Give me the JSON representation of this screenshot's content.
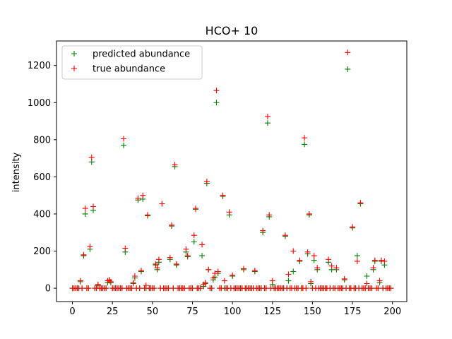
{
  "chart_data": {
    "type": "scatter",
    "title": "HCO+ 10",
    "xlabel": "",
    "ylabel": "intensity",
    "xlim": [
      -9.95,
      208.95
    ],
    "ylim": [
      -72,
      1332
    ],
    "xticks": [
      0,
      25,
      50,
      75,
      100,
      125,
      150,
      175,
      200
    ],
    "yticks": [
      0,
      200,
      400,
      600,
      800,
      1000,
      1200
    ],
    "legend_position": "top-left",
    "grid": false,
    "series": [
      {
        "name": "predicted abundance",
        "color": "#008000",
        "marker": "+",
        "x": [
          0,
          1,
          2,
          3,
          4,
          5,
          6,
          7,
          8,
          9,
          10,
          11,
          12,
          13,
          14,
          15,
          16,
          17,
          18,
          19,
          20,
          21,
          22,
          23,
          24,
          25,
          26,
          27,
          28,
          29,
          30,
          31,
          32,
          33,
          34,
          35,
          36,
          37,
          38,
          39,
          40,
          41,
          42,
          43,
          44,
          45,
          46,
          47,
          48,
          49,
          50,
          51,
          52,
          53,
          54,
          55,
          56,
          57,
          58,
          59,
          60,
          61,
          62,
          63,
          64,
          65,
          66,
          67,
          68,
          69,
          70,
          71,
          72,
          73,
          74,
          75,
          76,
          77,
          78,
          79,
          80,
          81,
          82,
          83,
          84,
          85,
          86,
          87,
          88,
          89,
          90,
          91,
          92,
          93,
          94,
          95,
          96,
          97,
          98,
          99,
          100,
          101,
          102,
          103,
          104,
          105,
          106,
          107,
          108,
          109,
          110,
          111,
          112,
          113,
          114,
          115,
          116,
          117,
          118,
          119,
          120,
          121,
          122,
          123,
          124,
          125,
          126,
          127,
          128,
          129,
          130,
          131,
          132,
          133,
          134,
          135,
          136,
          137,
          138,
          139,
          140,
          141,
          142,
          143,
          144,
          145,
          146,
          147,
          148,
          149,
          150,
          151,
          152,
          153,
          154,
          155,
          156,
          157,
          158,
          159,
          160,
          161,
          162,
          163,
          164,
          165,
          166,
          167,
          168,
          169,
          170,
          171,
          172,
          173,
          174,
          175,
          176,
          177,
          178,
          179,
          180,
          181,
          182,
          183,
          184,
          185,
          186,
          187,
          188,
          189,
          190,
          191,
          192,
          193,
          194,
          195,
          196,
          197,
          198,
          199
        ],
        "y": [
          0,
          0,
          0,
          0,
          0,
          35,
          0,
          175,
          400,
          0,
          0,
          210,
          680,
          420,
          0,
          0,
          15,
          0,
          0,
          0,
          0,
          0,
          30,
          40,
          30,
          0,
          0,
          0,
          0,
          0,
          0,
          0,
          770,
          195,
          0,
          0,
          0,
          0,
          25,
          55,
          0,
          475,
          0,
          90,
          480,
          0,
          0,
          390,
          0,
          0,
          0,
          0,
          125,
          100,
          140,
          0,
          455,
          0,
          0,
          0,
          0,
          155,
          335,
          0,
          655,
          125,
          0,
          0,
          0,
          0,
          0,
          195,
          170,
          0,
          0,
          0,
          250,
          425,
          0,
          0,
          0,
          175,
          10,
          25,
          565,
          100,
          0,
          0,
          45,
          60,
          1000,
          80,
          0,
          0,
          495,
          0,
          0,
          0,
          395,
          0,
          65,
          0,
          0,
          0,
          0,
          0,
          0,
          100,
          0,
          0,
          0,
          0,
          0,
          0,
          90,
          0,
          0,
          0,
          0,
          300,
          0,
          0,
          890,
          385,
          0,
          20,
          0,
          0,
          0,
          0,
          0,
          0,
          0,
          280,
          0,
          40,
          0,
          0,
          90,
          0,
          0,
          0,
          145,
          0,
          0,
          775,
          0,
          185,
          395,
          25,
          0,
          150,
          0,
          100,
          0,
          0,
          0,
          0,
          0,
          0,
          140,
          0,
          100,
          0,
          0,
          100,
          0,
          0,
          0,
          0,
          45,
          0,
          1180,
          0,
          0,
          325,
          0,
          0,
          175,
          0,
          455,
          0,
          0,
          0,
          65,
          0,
          0,
          0,
          100,
          145,
          0,
          0,
          30,
          145,
          0,
          125,
          0,
          0,
          0,
          0
        ],
        "note": "approximate"
      },
      {
        "name": "true abundance",
        "color": "#ff0000",
        "marker": "+",
        "x": [
          0,
          1,
          2,
          3,
          4,
          5,
          6,
          7,
          8,
          9,
          10,
          11,
          12,
          13,
          14,
          15,
          16,
          17,
          18,
          19,
          20,
          21,
          22,
          23,
          24,
          25,
          26,
          27,
          28,
          29,
          30,
          31,
          32,
          33,
          34,
          35,
          36,
          37,
          38,
          39,
          40,
          41,
          42,
          43,
          44,
          45,
          46,
          47,
          48,
          49,
          50,
          51,
          52,
          53,
          54,
          55,
          56,
          57,
          58,
          59,
          60,
          61,
          62,
          63,
          64,
          65,
          66,
          67,
          68,
          69,
          70,
          71,
          72,
          73,
          74,
          75,
          76,
          77,
          78,
          79,
          80,
          81,
          82,
          83,
          84,
          85,
          86,
          87,
          88,
          89,
          90,
          91,
          92,
          93,
          94,
          95,
          96,
          97,
          98,
          99,
          100,
          101,
          102,
          103,
          104,
          105,
          106,
          107,
          108,
          109,
          110,
          111,
          112,
          113,
          114,
          115,
          116,
          117,
          118,
          119,
          120,
          121,
          122,
          123,
          124,
          125,
          126,
          127,
          128,
          129,
          130,
          131,
          132,
          133,
          134,
          135,
          136,
          137,
          138,
          139,
          140,
          141,
          142,
          143,
          144,
          145,
          146,
          147,
          148,
          149,
          150,
          151,
          152,
          153,
          154,
          155,
          156,
          157,
          158,
          159,
          160,
          161,
          162,
          163,
          164,
          165,
          166,
          167,
          168,
          169,
          170,
          171,
          172,
          173,
          174,
          175,
          176,
          177,
          178,
          179,
          180,
          181,
          182,
          183,
          184,
          185,
          186,
          187,
          188,
          189,
          190,
          191,
          192,
          193,
          194,
          195,
          196,
          197,
          198,
          199
        ],
        "y": [
          0,
          0,
          0,
          0,
          0,
          40,
          0,
          180,
          430,
          0,
          0,
          225,
          705,
          440,
          0,
          0,
          20,
          0,
          0,
          0,
          0,
          0,
          40,
          45,
          35,
          0,
          0,
          0,
          0,
          0,
          0,
          0,
          805,
          215,
          0,
          0,
          0,
          0,
          30,
          65,
          0,
          485,
          0,
          95,
          500,
          0,
          15,
          395,
          0,
          0,
          0,
          0,
          130,
          110,
          155,
          0,
          455,
          0,
          0,
          0,
          0,
          165,
          340,
          0,
          665,
          130,
          0,
          0,
          0,
          0,
          0,
          210,
          175,
          0,
          0,
          0,
          285,
          430,
          0,
          0,
          0,
          235,
          20,
          30,
          575,
          100,
          0,
          0,
          55,
          80,
          1065,
          90,
          0,
          0,
          500,
          40,
          0,
          0,
          410,
          0,
          70,
          0,
          0,
          0,
          0,
          0,
          0,
          105,
          0,
          0,
          0,
          0,
          0,
          0,
          95,
          0,
          0,
          0,
          0,
          310,
          0,
          0,
          925,
          395,
          0,
          40,
          0,
          0,
          0,
          0,
          0,
          0,
          0,
          285,
          0,
          75,
          0,
          0,
          200,
          0,
          0,
          0,
          150,
          0,
          0,
          810,
          0,
          195,
          400,
          35,
          0,
          175,
          0,
          110,
          0,
          0,
          0,
          0,
          0,
          0,
          155,
          0,
          120,
          0,
          0,
          110,
          0,
          0,
          0,
          0,
          50,
          0,
          1270,
          0,
          0,
          330,
          0,
          0,
          145,
          0,
          460,
          0,
          0,
          0,
          25,
          0,
          0,
          0,
          110,
          150,
          0,
          0,
          40,
          150,
          0,
          145,
          0,
          0,
          0,
          0
        ],
        "note": "approximate"
      }
    ]
  }
}
